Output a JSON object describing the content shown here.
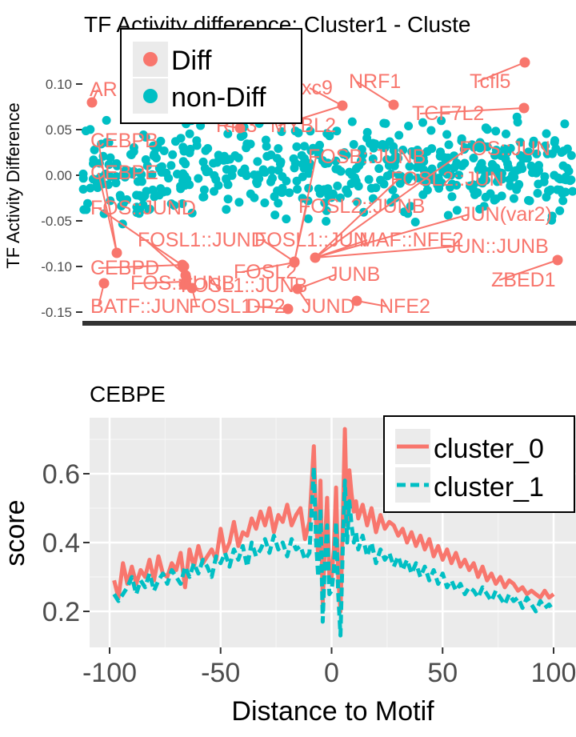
{
  "chart_data": [
    {
      "type": "scatter",
      "title": "TF Activity difference: Cluster1 - Cluste",
      "xlabel": "",
      "ylabel": "TF Activity Difference",
      "ylim": [
        -0.15,
        0.13
      ],
      "yticks": [
        0.1,
        0.05,
        0.0,
        -0.05,
        -0.1,
        -0.15
      ],
      "ytick_labels": [
        "0.10",
        "0.05",
        "0.00",
        "-0.05",
        "-0.10",
        "-0.15"
      ],
      "legend": {
        "placement": "top-left",
        "entries": [
          {
            "label": "Diff",
            "glyph": "a",
            "color": "#F8766D"
          },
          {
            "label": "non-Diff",
            "glyph": "a",
            "color": "#00BFC4"
          }
        ]
      },
      "colors": {
        "diff": "#F8766D",
        "nondiff": "#00BFC4"
      },
      "labeled_points": [
        {
          "label": "AR",
          "x": 3,
          "y": 0.08
        },
        {
          "label": "CEBPB",
          "x": 33,
          "y": -0.083
        },
        {
          "label": "CEBPE",
          "x": 33,
          "y": -0.087
        },
        {
          "label": "FOS::JUND",
          "x": 100,
          "y": -0.098
        },
        {
          "label": "FOSL1::JUND",
          "x": 103,
          "y": -0.1
        },
        {
          "label": "FOS::JUNB",
          "x": 103,
          "y": -0.115
        },
        {
          "label": "CEBPD",
          "x": 102,
          "y": -0.11
        },
        {
          "label": "FOS",
          "x": 104,
          "y": -0.12
        },
        {
          "label": "BATF::JUN",
          "x": 9,
          "y": -0.118
        },
        {
          "label": "FOSL1::JUNB",
          "x": 108,
          "y": -0.122
        },
        {
          "label": "FOSL1",
          "x": 108,
          "y": -0.125
        },
        {
          "label": "FOSL1::JUN",
          "x": 193,
          "y": -0.095
        },
        {
          "label": "FOSL2",
          "x": 193,
          "y": -0.105
        },
        {
          "label": "FOSL2::JUNB",
          "x": 193,
          "y": -0.097
        },
        {
          "label": "FOSB::JUNB",
          "x": 193,
          "y": -0.098
        },
        {
          "label": "NFE2",
          "x": 223,
          "y": -0.138
        },
        {
          "label": "JUNB",
          "x": 195,
          "y": -0.122
        },
        {
          "label": "JUND",
          "x": 193,
          "y": -0.125
        },
        {
          "label": "DP2",
          "x": 180,
          "y": -0.145
        },
        {
          "label": "MAF::NFE2",
          "x": 200,
          "y": -0.093
        },
        {
          "label": "JUN::JUNB",
          "x": 300,
          "y": -0.085
        },
        {
          "label": "JUN(var2)",
          "x": 300,
          "y": -0.08
        },
        {
          "label": "FOSL2::JUN",
          "x": 300,
          "y": -0.078
        },
        {
          "label": "FOS::JUN",
          "x": 300,
          "y": -0.075
        },
        {
          "label": "TCF7L2",
          "x": 343,
          "y": 0.075
        },
        {
          "label": "Tcfl5",
          "x": 343,
          "y": 0.125
        },
        {
          "label": "NRF1",
          "x": 260,
          "y": 0.077
        },
        {
          "label": "ZBED1",
          "x": 352,
          "y": -0.093
        },
        {
          "label": "MYBL2",
          "x": 224,
          "y": 0.075
        },
        {
          "label": "xc9",
          "x": 200,
          "y": 0.125
        },
        {
          "label": "Rfx3",
          "x": 150,
          "y": 0.075
        }
      ]
    },
    {
      "type": "line",
      "title": "CEBPE",
      "xlabel": "Distance to Motif",
      "ylabel": "score",
      "xlim": [
        -100,
        100
      ],
      "ylim": [
        0.1,
        0.75
      ],
      "xticks": [
        -100,
        -50,
        0,
        50,
        100
      ],
      "xtick_labels": [
        "-100",
        "-50",
        "0",
        "50",
        "100"
      ],
      "yticks": [
        0.2,
        0.4,
        0.6
      ],
      "ytick_labels": [
        "0.2",
        "0.4",
        "0.6"
      ],
      "grid": true,
      "legend": {
        "placement": "top-right"
      },
      "series": [
        {
          "name": "cluster_0",
          "style": "solid",
          "color": "#F8766D",
          "x": [
            -98,
            -96,
            -94,
            -92,
            -90,
            -88,
            -86,
            -84,
            -82,
            -80,
            -78,
            -76,
            -74,
            -72,
            -70,
            -68,
            -66,
            -64,
            -62,
            -60,
            -58,
            -56,
            -54,
            -52,
            -50,
            -48,
            -46,
            -44,
            -42,
            -40,
            -38,
            -36,
            -34,
            -32,
            -30,
            -28,
            -26,
            -24,
            -22,
            -20,
            -18,
            -16,
            -14,
            -12,
            -10,
            -8,
            -7,
            -6,
            -5,
            -4,
            -3,
            -2,
            -1,
            0,
            1,
            2,
            3,
            4,
            5,
            6,
            7,
            8,
            9,
            10,
            11,
            12,
            14,
            16,
            18,
            20,
            22,
            24,
            26,
            28,
            30,
            32,
            34,
            36,
            38,
            40,
            42,
            44,
            46,
            48,
            50,
            52,
            54,
            56,
            58,
            60,
            62,
            64,
            66,
            68,
            70,
            72,
            74,
            76,
            78,
            80,
            82,
            84,
            86,
            88,
            90,
            92,
            94,
            96,
            98,
            100
          ],
          "y": [
            0.29,
            0.24,
            0.34,
            0.28,
            0.33,
            0.28,
            0.32,
            0.3,
            0.35,
            0.29,
            0.36,
            0.31,
            0.3,
            0.34,
            0.32,
            0.37,
            0.27,
            0.38,
            0.33,
            0.39,
            0.34,
            0.36,
            0.38,
            0.35,
            0.44,
            0.37,
            0.4,
            0.46,
            0.39,
            0.43,
            0.42,
            0.47,
            0.44,
            0.49,
            0.45,
            0.5,
            0.43,
            0.48,
            0.46,
            0.51,
            0.45,
            0.48,
            0.5,
            0.41,
            0.46,
            0.68,
            0.46,
            0.36,
            0.58,
            0.22,
            0.4,
            0.53,
            0.3,
            0.3,
            0.38,
            0.56,
            0.3,
            0.2,
            0.45,
            0.73,
            0.45,
            0.61,
            0.54,
            0.49,
            0.52,
            0.47,
            0.51,
            0.45,
            0.5,
            0.43,
            0.48,
            0.44,
            0.46,
            0.45,
            0.42,
            0.44,
            0.4,
            0.43,
            0.39,
            0.42,
            0.38,
            0.41,
            0.36,
            0.39,
            0.35,
            0.38,
            0.34,
            0.37,
            0.33,
            0.35,
            0.32,
            0.34,
            0.3,
            0.33,
            0.29,
            0.31,
            0.28,
            0.3,
            0.27,
            0.29,
            0.28,
            0.26,
            0.27,
            0.25,
            0.26,
            0.25,
            0.24,
            0.26,
            0.24,
            0.25
          ]
        },
        {
          "name": "cluster_1",
          "style": "dashed",
          "color": "#00BFC4",
          "x": [
            -98,
            -96,
            -94,
            -92,
            -90,
            -88,
            -86,
            -84,
            -82,
            -80,
            -78,
            -76,
            -74,
            -72,
            -70,
            -68,
            -66,
            -64,
            -62,
            -60,
            -58,
            -56,
            -54,
            -52,
            -50,
            -48,
            -46,
            -44,
            -42,
            -40,
            -38,
            -36,
            -34,
            -32,
            -30,
            -28,
            -26,
            -24,
            -22,
            -20,
            -18,
            -16,
            -14,
            -12,
            -10,
            -8,
            -7,
            -6,
            -5,
            -4,
            -3,
            -2,
            -1,
            0,
            1,
            2,
            3,
            4,
            5,
            6,
            7,
            8,
            9,
            10,
            11,
            12,
            14,
            16,
            18,
            20,
            22,
            24,
            26,
            28,
            30,
            32,
            34,
            36,
            38,
            40,
            42,
            44,
            46,
            48,
            50,
            52,
            54,
            56,
            58,
            60,
            62,
            64,
            66,
            68,
            70,
            72,
            74,
            76,
            78,
            80,
            82,
            84,
            86,
            88,
            90,
            92,
            94,
            96,
            98,
            100
          ],
          "y": [
            0.25,
            0.23,
            0.25,
            0.27,
            0.3,
            0.25,
            0.29,
            0.27,
            0.31,
            0.26,
            0.29,
            0.31,
            0.28,
            0.32,
            0.3,
            0.28,
            0.33,
            0.3,
            0.34,
            0.31,
            0.35,
            0.33,
            0.3,
            0.36,
            0.34,
            0.37,
            0.33,
            0.38,
            0.35,
            0.39,
            0.33,
            0.4,
            0.36,
            0.38,
            0.41,
            0.37,
            0.42,
            0.38,
            0.4,
            0.36,
            0.41,
            0.38,
            0.39,
            0.35,
            0.37,
            0.62,
            0.4,
            0.3,
            0.5,
            0.17,
            0.35,
            0.45,
            0.25,
            0.26,
            0.32,
            0.46,
            0.25,
            0.13,
            0.38,
            0.58,
            0.4,
            0.52,
            0.45,
            0.4,
            0.43,
            0.38,
            0.42,
            0.36,
            0.4,
            0.34,
            0.38,
            0.35,
            0.37,
            0.33,
            0.36,
            0.32,
            0.35,
            0.31,
            0.34,
            0.3,
            0.33,
            0.29,
            0.32,
            0.28,
            0.31,
            0.27,
            0.29,
            0.26,
            0.28,
            0.25,
            0.27,
            0.26,
            0.24,
            0.27,
            0.25,
            0.23,
            0.26,
            0.24,
            0.22,
            0.25,
            0.23,
            0.24,
            0.21,
            0.24,
            0.22,
            0.2,
            0.23,
            0.21,
            0.22,
            0.2
          ]
        }
      ]
    }
  ]
}
